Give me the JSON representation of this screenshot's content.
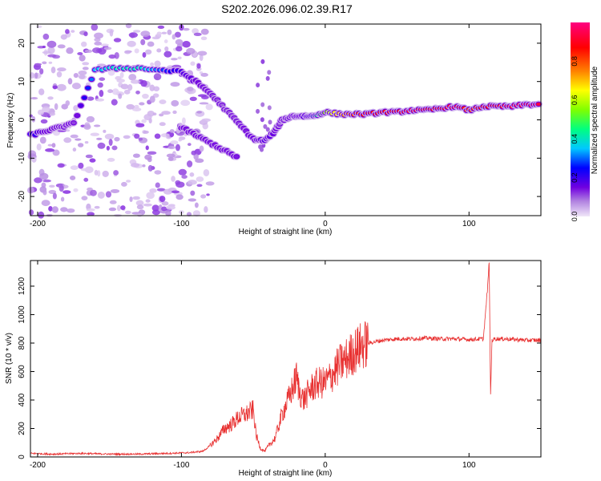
{
  "title": "S202.2026.096.02.39.R17",
  "chart_data": [
    {
      "type": "heatmap",
      "xlabel": "Height of straight line (km)",
      "ylabel": "Frequency (Hz)",
      "xlim": [
        -205,
        150
      ],
      "ylim": [
        -25,
        25
      ],
      "xticks": [
        -200,
        -100,
        0,
        100
      ],
      "yticks": [
        -20,
        -10,
        0,
        10,
        20
      ],
      "colorbar": {
        "label": "Normalized spectral amplitude",
        "range": [
          0,
          1
        ],
        "ticks": [
          "0.0",
          "0.2",
          "0.4",
          "0.6",
          "0.8"
        ],
        "colors": [
          "#f0e6f8",
          "#b080e0",
          "#7000e0",
          "#0000ff",
          "#00c8ff",
          "#00ff80",
          "#80ff00",
          "#ffff00",
          "#ff8000",
          "#ff0000",
          "#ff0080"
        ]
      },
      "ridge": {
        "x": [
          -205,
          -195,
          -185,
          -175,
          -160,
          -145,
          -130,
          -115,
          -100,
          -90,
          -80,
          -70,
          -60,
          -50,
          -42,
          -35,
          -30,
          -22,
          -15,
          -8,
          0,
          10,
          20,
          30,
          40,
          50,
          60,
          70,
          80,
          90,
          100,
          110,
          120,
          130,
          140,
          150
        ],
        "y": [
          -4,
          -3,
          -2,
          -1,
          13,
          13.5,
          13.5,
          13,
          12.5,
          10,
          7,
          3,
          -1,
          -5,
          -5.5,
          -3,
          0,
          1,
          1,
          1,
          2,
          1.5,
          1.5,
          1.5,
          2,
          2,
          2.5,
          2.5,
          3,
          3.5,
          2.5,
          3.5,
          3.5,
          3.5,
          4,
          4
        ],
        "amplitude": [
          0.3,
          0.2,
          0.1,
          0.15,
          0.4,
          0.45,
          0.45,
          0.35,
          0.25,
          0.2,
          0.15,
          0.12,
          0.15,
          0.2,
          0.25,
          0.2,
          0.1,
          0.12,
          0.25,
          0.45,
          0.6,
          0.75,
          0.85,
          0.9,
          0.9,
          0.9,
          0.95,
          0.9,
          0.9,
          0.95,
          0.85,
          0.9,
          0.9,
          0.95,
          0.95,
          0.95
        ]
      },
      "lower_branch": {
        "x": [
          -100,
          -90,
          -80,
          -70,
          -60
        ],
        "y": [
          -2,
          -4,
          -6,
          -8,
          -10
        ]
      }
    },
    {
      "type": "line",
      "xlabel": "Height of straight line (km)",
      "ylabel": "SNR (10 * v/v)",
      "xlim": [
        -205,
        150
      ],
      "ylim": [
        0,
        1380
      ],
      "xticks": [
        -200,
        -100,
        0,
        100
      ],
      "yticks": [
        0,
        200,
        400,
        600,
        800,
        1000,
        1200
      ],
      "color": "#e83030",
      "series": {
        "x": [
          -205,
          -190,
          -170,
          -150,
          -130,
          -110,
          -95,
          -85,
          -80,
          -75,
          -70,
          -65,
          -60,
          -55,
          -50,
          -48,
          -45,
          -42,
          -40,
          -35,
          -30,
          -25,
          -22,
          -20,
          -18,
          -15,
          -10,
          -5,
          0,
          5,
          10,
          15,
          20,
          25,
          30,
          40,
          50,
          60,
          70,
          80,
          90,
          100,
          110,
          113,
          114,
          115,
          116,
          118,
          125,
          140,
          150
        ],
        "y": [
          25,
          20,
          25,
          20,
          20,
          25,
          30,
          40,
          80,
          130,
          200,
          230,
          280,
          300,
          330,
          150,
          60,
          40,
          70,
          130,
          300,
          420,
          500,
          560,
          460,
          400,
          480,
          520,
          520,
          580,
          650,
          690,
          740,
          780,
          800,
          820,
          830,
          830,
          835,
          830,
          830,
          825,
          830,
          1200,
          1380,
          430,
          820,
          830,
          830,
          820,
          820
        ]
      }
    }
  ]
}
